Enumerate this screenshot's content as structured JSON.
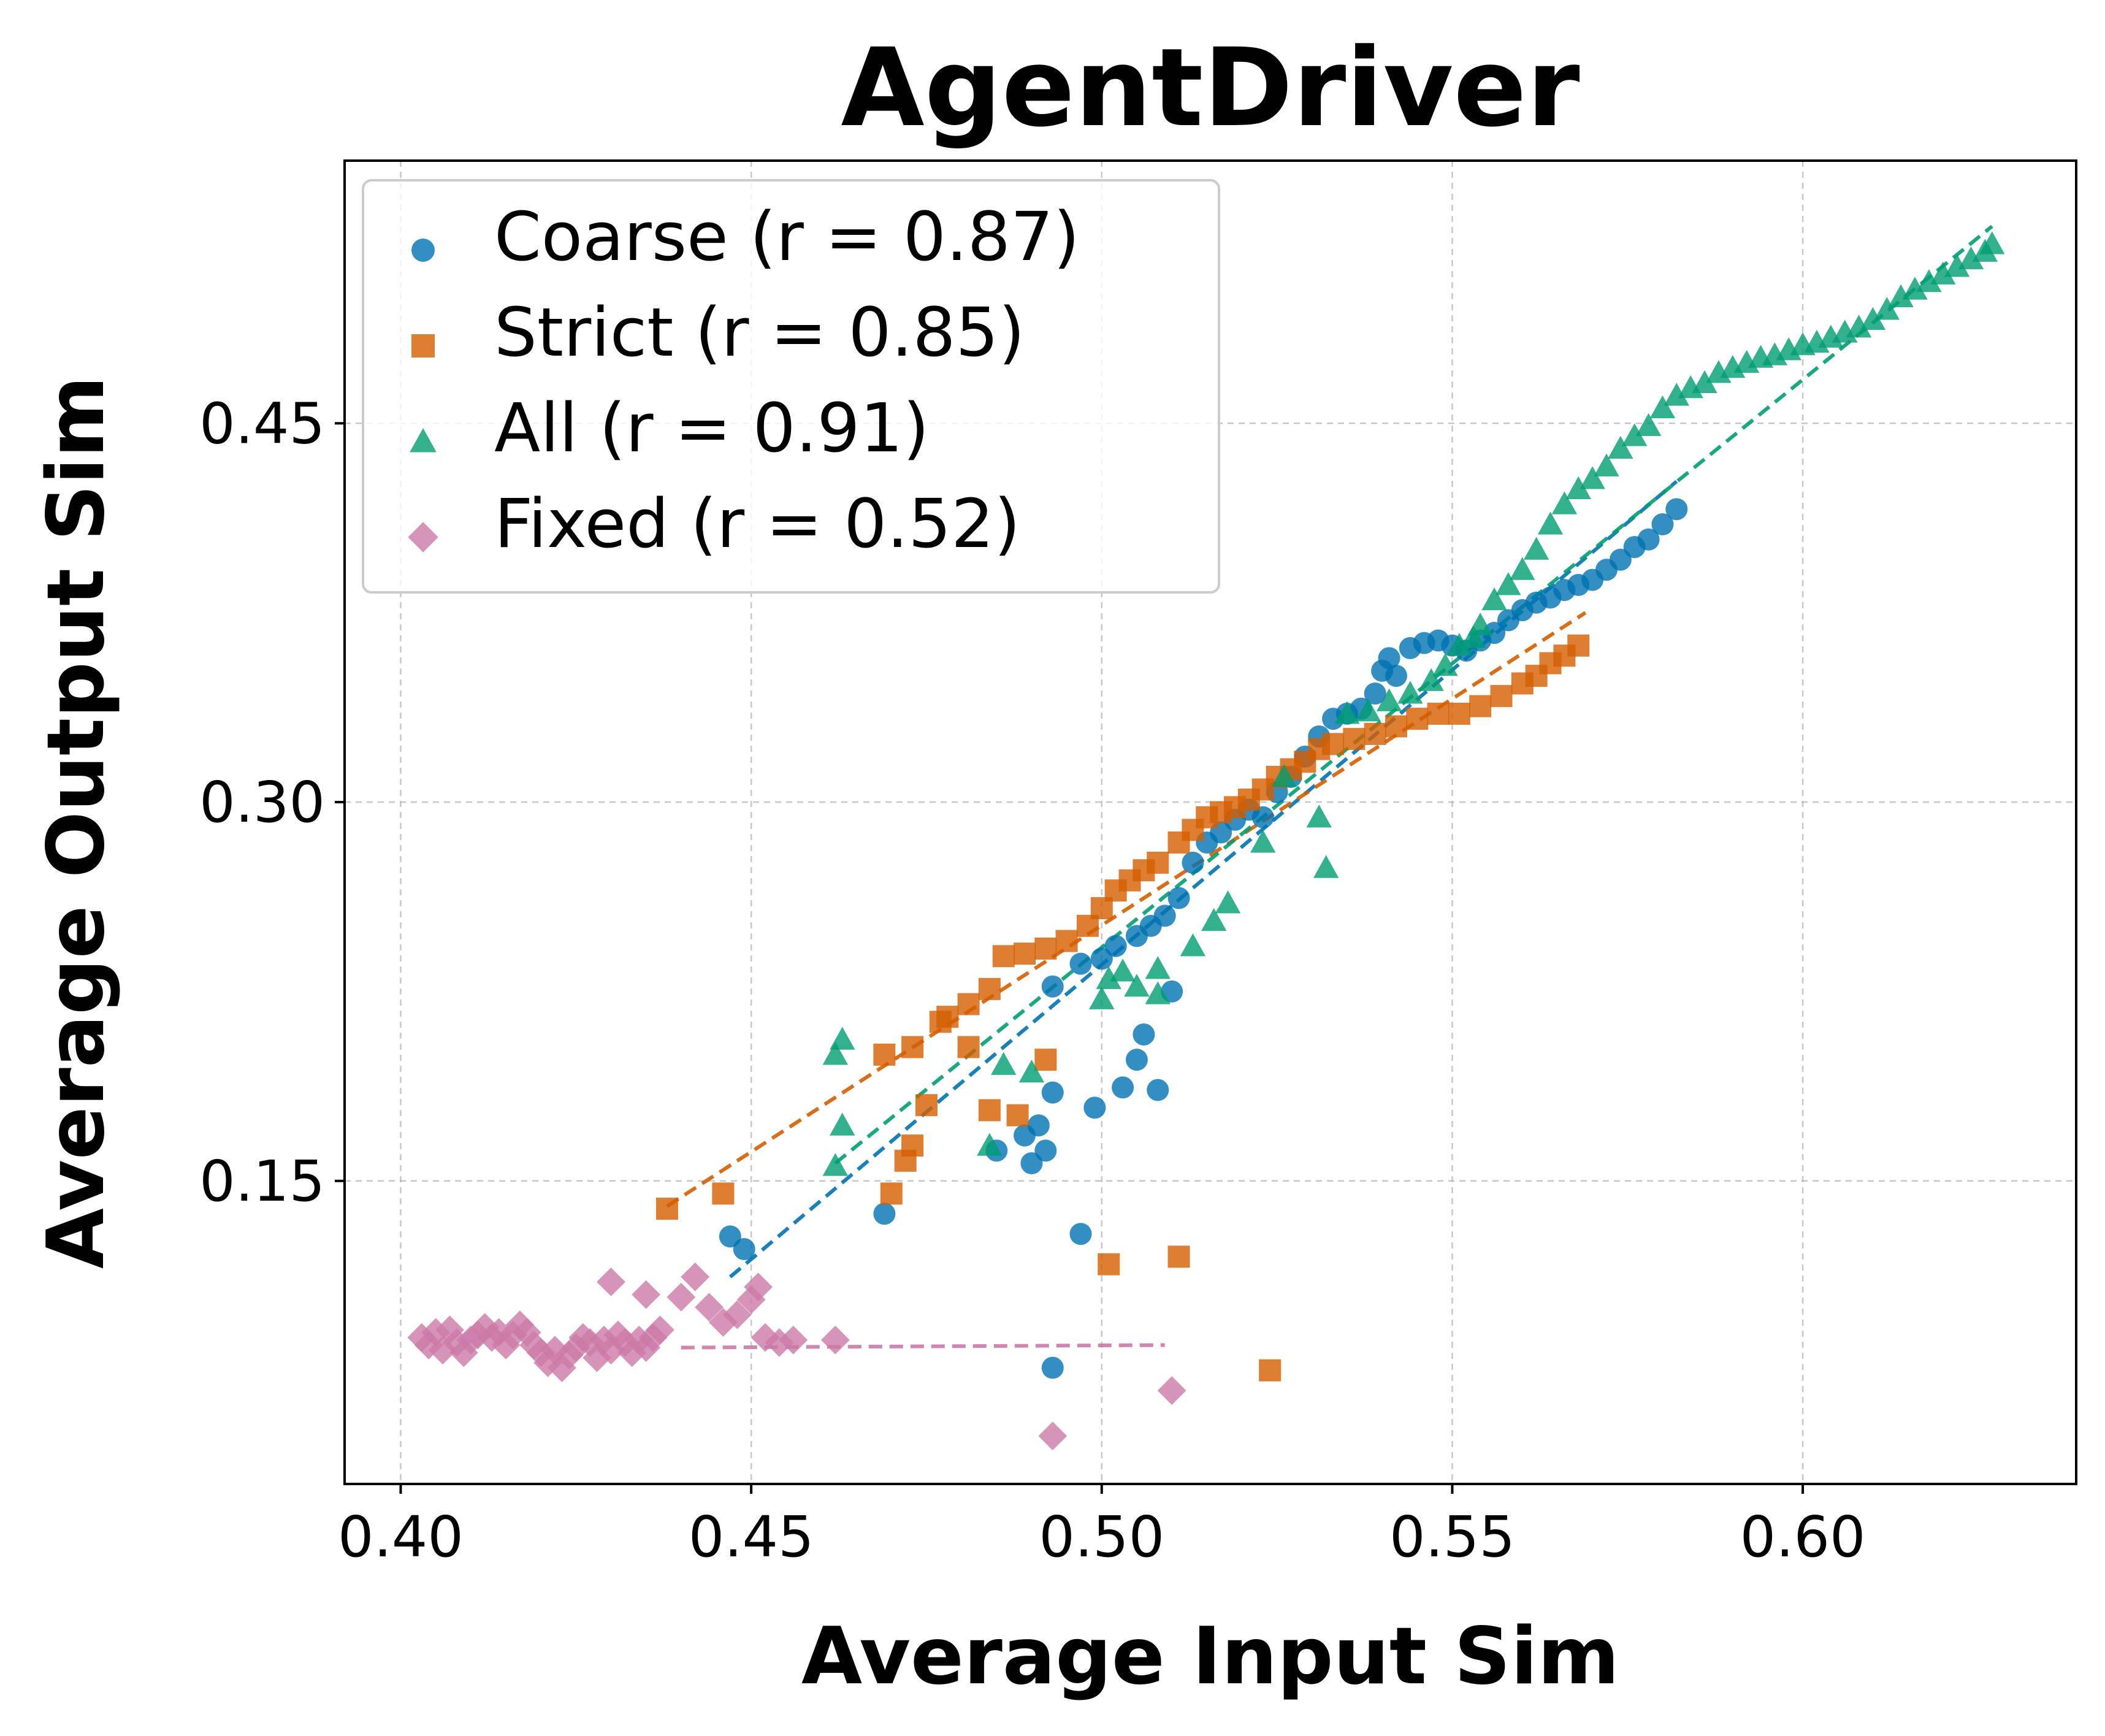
{
  "chart_data": {
    "type": "scatter",
    "title": "AgentDriver",
    "xlabel": "Average Input Sim",
    "ylabel": "Average Output Sim",
    "xlim": [
      0.392,
      0.639
    ],
    "ylim": [
      0.03,
      0.554
    ],
    "xticks": [
      0.4,
      0.45,
      0.5,
      0.55,
      0.6
    ],
    "xtick_labels": [
      "0.40",
      "0.45",
      "0.50",
      "0.55",
      "0.60"
    ],
    "yticks": [
      0.15,
      0.3,
      0.45
    ],
    "ytick_labels": [
      "0.15",
      "0.30",
      "0.45"
    ],
    "grid": true,
    "legend_position": "top-left",
    "series": [
      {
        "name": "Coarse (r = 0.87)",
        "label": "Coarse (r = 0.87)",
        "marker": "circle",
        "color": "#0072B2",
        "fit": [
          [
            0.447,
            0.112
          ],
          [
            0.582,
            0.427
          ]
        ],
        "points": [
          [
            0.447,
            0.128
          ],
          [
            0.449,
            0.123
          ],
          [
            0.469,
            0.137
          ],
          [
            0.485,
            0.162
          ],
          [
            0.489,
            0.168
          ],
          [
            0.49,
            0.157
          ],
          [
            0.491,
            0.172
          ],
          [
            0.492,
            0.162
          ],
          [
            0.493,
            0.185
          ],
          [
            0.493,
            0.076
          ],
          [
            0.497,
            0.129
          ],
          [
            0.499,
            0.179
          ],
          [
            0.503,
            0.187
          ],
          [
            0.505,
            0.198
          ],
          [
            0.506,
            0.208
          ],
          [
            0.508,
            0.186
          ],
          [
            0.51,
            0.225
          ],
          [
            0.493,
            0.227
          ],
          [
            0.497,
            0.236
          ],
          [
            0.5,
            0.238
          ],
          [
            0.502,
            0.243
          ],
          [
            0.505,
            0.247
          ],
          [
            0.507,
            0.251
          ],
          [
            0.509,
            0.255
          ],
          [
            0.511,
            0.262
          ],
          [
            0.513,
            0.276
          ],
          [
            0.515,
            0.284
          ],
          [
            0.517,
            0.288
          ],
          [
            0.519,
            0.293
          ],
          [
            0.521,
            0.297
          ],
          [
            0.523,
            0.294
          ],
          [
            0.525,
            0.304
          ],
          [
            0.527,
            0.31
          ],
          [
            0.529,
            0.318
          ],
          [
            0.531,
            0.326
          ],
          [
            0.533,
            0.333
          ],
          [
            0.535,
            0.335
          ],
          [
            0.537,
            0.337
          ],
          [
            0.539,
            0.343
          ],
          [
            0.54,
            0.352
          ],
          [
            0.541,
            0.357
          ],
          [
            0.542,
            0.35
          ],
          [
            0.544,
            0.361
          ],
          [
            0.546,
            0.363
          ],
          [
            0.548,
            0.364
          ],
          [
            0.55,
            0.362
          ],
          [
            0.552,
            0.36
          ],
          [
            0.554,
            0.364
          ],
          [
            0.556,
            0.367
          ],
          [
            0.558,
            0.372
          ],
          [
            0.56,
            0.376
          ],
          [
            0.562,
            0.379
          ],
          [
            0.564,
            0.381
          ],
          [
            0.566,
            0.384
          ],
          [
            0.568,
            0.386
          ],
          [
            0.57,
            0.388
          ],
          [
            0.572,
            0.392
          ],
          [
            0.574,
            0.396
          ],
          [
            0.576,
            0.401
          ],
          [
            0.578,
            0.404
          ],
          [
            0.58,
            0.41
          ],
          [
            0.582,
            0.416
          ]
        ]
      },
      {
        "name": "Strict (r = 0.85)",
        "label": "Strict (r = 0.85)",
        "marker": "square",
        "color": "#D55E00",
        "fit": [
          [
            0.438,
            0.14
          ],
          [
            0.569,
            0.375
          ]
        ],
        "points": [
          [
            0.438,
            0.139
          ],
          [
            0.446,
            0.145
          ],
          [
            0.47,
            0.145
          ],
          [
            0.472,
            0.158
          ],
          [
            0.473,
            0.164
          ],
          [
            0.475,
            0.18
          ],
          [
            0.469,
            0.2
          ],
          [
            0.473,
            0.203
          ],
          [
            0.477,
            0.213
          ],
          [
            0.481,
            0.203
          ],
          [
            0.484,
            0.178
          ],
          [
            0.488,
            0.176
          ],
          [
            0.492,
            0.198
          ],
          [
            0.501,
            0.117
          ],
          [
            0.511,
            0.12
          ],
          [
            0.524,
            0.075
          ],
          [
            0.478,
            0.215
          ],
          [
            0.481,
            0.22
          ],
          [
            0.484,
            0.226
          ],
          [
            0.486,
            0.239
          ],
          [
            0.489,
            0.24
          ],
          [
            0.492,
            0.242
          ],
          [
            0.495,
            0.245
          ],
          [
            0.498,
            0.251
          ],
          [
            0.5,
            0.258
          ],
          [
            0.502,
            0.265
          ],
          [
            0.504,
            0.269
          ],
          [
            0.506,
            0.273
          ],
          [
            0.508,
            0.276
          ],
          [
            0.511,
            0.284
          ],
          [
            0.513,
            0.289
          ],
          [
            0.515,
            0.294
          ],
          [
            0.517,
            0.296
          ],
          [
            0.519,
            0.298
          ],
          [
            0.521,
            0.301
          ],
          [
            0.523,
            0.305
          ],
          [
            0.525,
            0.31
          ],
          [
            0.527,
            0.313
          ],
          [
            0.529,
            0.316
          ],
          [
            0.531,
            0.321
          ],
          [
            0.533,
            0.323
          ],
          [
            0.536,
            0.325
          ],
          [
            0.539,
            0.327
          ],
          [
            0.542,
            0.33
          ],
          [
            0.545,
            0.333
          ],
          [
            0.548,
            0.335
          ],
          [
            0.551,
            0.335
          ],
          [
            0.554,
            0.338
          ],
          [
            0.557,
            0.342
          ],
          [
            0.56,
            0.347
          ],
          [
            0.562,
            0.35
          ],
          [
            0.564,
            0.355
          ],
          [
            0.566,
            0.358
          ],
          [
            0.568,
            0.362
          ]
        ]
      },
      {
        "name": "All (r = 0.91)",
        "label": "All (r = 0.91)",
        "marker": "triangle",
        "color": "#009E73",
        "fit": [
          [
            0.462,
            0.157
          ],
          [
            0.627,
            0.528
          ]
        ],
        "points": [
          [
            0.462,
            0.156
          ],
          [
            0.463,
            0.172
          ],
          [
            0.462,
            0.2
          ],
          [
            0.463,
            0.206
          ],
          [
            0.484,
            0.164
          ],
          [
            0.486,
            0.196
          ],
          [
            0.49,
            0.193
          ],
          [
            0.5,
            0.222
          ],
          [
            0.501,
            0.23
          ],
          [
            0.503,
            0.233
          ],
          [
            0.505,
            0.227
          ],
          [
            0.508,
            0.234
          ],
          [
            0.508,
            0.224
          ],
          [
            0.513,
            0.243
          ],
          [
            0.516,
            0.253
          ],
          [
            0.518,
            0.26
          ],
          [
            0.523,
            0.284
          ],
          [
            0.526,
            0.31
          ],
          [
            0.531,
            0.294
          ],
          [
            0.532,
            0.274
          ],
          [
            0.535,
            0.335
          ],
          [
            0.538,
            0.336
          ],
          [
            0.541,
            0.34
          ],
          [
            0.544,
            0.343
          ],
          [
            0.547,
            0.348
          ],
          [
            0.549,
            0.354
          ],
          [
            0.551,
            0.362
          ],
          [
            0.553,
            0.365
          ],
          [
            0.554,
            0.37
          ],
          [
            0.556,
            0.38
          ],
          [
            0.558,
            0.386
          ],
          [
            0.56,
            0.392
          ],
          [
            0.562,
            0.4
          ],
          [
            0.564,
            0.41
          ],
          [
            0.566,
            0.418
          ],
          [
            0.568,
            0.424
          ],
          [
            0.57,
            0.428
          ],
          [
            0.572,
            0.433
          ],
          [
            0.574,
            0.44
          ],
          [
            0.576,
            0.445
          ],
          [
            0.578,
            0.449
          ],
          [
            0.58,
            0.456
          ],
          [
            0.582,
            0.461
          ],
          [
            0.584,
            0.464
          ],
          [
            0.586,
            0.466
          ],
          [
            0.588,
            0.47
          ],
          [
            0.59,
            0.472
          ],
          [
            0.592,
            0.474
          ],
          [
            0.594,
            0.476
          ],
          [
            0.596,
            0.477
          ],
          [
            0.598,
            0.479
          ],
          [
            0.6,
            0.481
          ],
          [
            0.602,
            0.482
          ],
          [
            0.604,
            0.484
          ],
          [
            0.606,
            0.486
          ],
          [
            0.608,
            0.488
          ],
          [
            0.61,
            0.491
          ],
          [
            0.612,
            0.495
          ],
          [
            0.614,
            0.5
          ],
          [
            0.616,
            0.503
          ],
          [
            0.618,
            0.506
          ],
          [
            0.62,
            0.509
          ],
          [
            0.622,
            0.512
          ],
          [
            0.624,
            0.515
          ],
          [
            0.626,
            0.518
          ],
          [
            0.627,
            0.521
          ]
        ]
      },
      {
        "name": "Fixed (r = 0.52)",
        "label": "Fixed (r = 0.52)",
        "marker": "diamond",
        "color": "#CC79A7",
        "fit": [
          [
            0.44,
            0.084
          ],
          [
            0.509,
            0.085
          ]
        ],
        "points": [
          [
            0.403,
            0.088
          ],
          [
            0.404,
            0.085
          ],
          [
            0.405,
            0.09
          ],
          [
            0.406,
            0.083
          ],
          [
            0.407,
            0.091
          ],
          [
            0.408,
            0.086
          ],
          [
            0.409,
            0.082
          ],
          [
            0.41,
            0.087
          ],
          [
            0.411,
            0.089
          ],
          [
            0.412,
            0.092
          ],
          [
            0.413,
            0.088
          ],
          [
            0.414,
            0.09
          ],
          [
            0.415,
            0.085
          ],
          [
            0.416,
            0.089
          ],
          [
            0.417,
            0.093
          ],
          [
            0.418,
            0.09
          ],
          [
            0.419,
            0.085
          ],
          [
            0.42,
            0.082
          ],
          [
            0.421,
            0.078
          ],
          [
            0.422,
            0.083
          ],
          [
            0.423,
            0.076
          ],
          [
            0.424,
            0.081
          ],
          [
            0.425,
            0.084
          ],
          [
            0.426,
            0.088
          ],
          [
            0.427,
            0.086
          ],
          [
            0.428,
            0.08
          ],
          [
            0.429,
            0.087
          ],
          [
            0.43,
            0.083
          ],
          [
            0.431,
            0.089
          ],
          [
            0.432,
            0.086
          ],
          [
            0.433,
            0.082
          ],
          [
            0.434,
            0.087
          ],
          [
            0.435,
            0.084
          ],
          [
            0.436,
            0.088
          ],
          [
            0.437,
            0.091
          ],
          [
            0.43,
            0.11
          ],
          [
            0.435,
            0.105
          ],
          [
            0.44,
            0.104
          ],
          [
            0.442,
            0.112
          ],
          [
            0.444,
            0.1
          ],
          [
            0.446,
            0.094
          ],
          [
            0.448,
            0.097
          ],
          [
            0.45,
            0.103
          ],
          [
            0.451,
            0.108
          ],
          [
            0.452,
            0.088
          ],
          [
            0.454,
            0.086
          ],
          [
            0.456,
            0.087
          ],
          [
            0.462,
            0.087
          ],
          [
            0.493,
            0.049
          ],
          [
            0.51,
            0.067
          ]
        ]
      }
    ]
  }
}
